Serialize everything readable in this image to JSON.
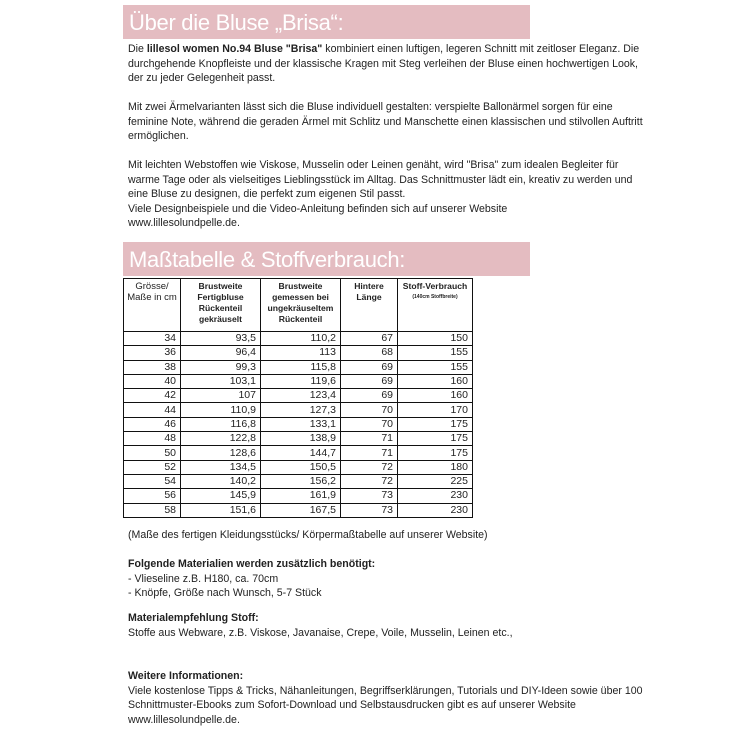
{
  "section1": {
    "title": "Über die Bluse „Brisa“:",
    "p1_pre": "Die ",
    "p1_bold": "lillesol women No.94 Bluse \"Brisa\"",
    "p1_post": " kombiniert einen luftigen, legeren Schnitt mit zeitloser Eleganz. Die durchgehende Knopfleiste und der klassische Kragen mit Steg verleihen der Bluse einen hochwertigen Look, der zu jeder Gelegenheit passt.",
    "p2": "Mit zwei Ärmelvarianten lässt sich die Bluse individuell gestalten: verspielte Ballonärmel sorgen für eine feminine Note, während die geraden Ärmel mit Schlitz und Manschette einen klassischen und stilvollen Auftritt ermöglichen.",
    "p3": "Mit leichten Webstoffen wie Viskose, Musselin oder Leinen genäht, wird \"Brisa\" zum idealen Begleiter für warme Tage oder als vielseitiges Lieblingsstück im Alltag. Das Schnittmuster lädt ein, kreativ zu werden und eine Bluse zu designen, die perfekt zum eigenen Stil passt.",
    "p4": "Viele Designbeispiele und die Video-Anleitung befinden sich auf unserer Website",
    "p5": "www.lillesolundpelle.de."
  },
  "section2": {
    "title": "Maßtabelle & Stoffverbrauch:",
    "headers": [
      "Grösse/ Maße in cm",
      "Brustweite Fertigbluse Rückenteil gekräuselt",
      "Brustweite gemessen bei ungekräuseltem Rückenteil",
      "Hintere Länge",
      "Stoff-Verbrauch"
    ],
    "header_note": "(140cm Stoffbreite)",
    "rows": [
      [
        "34",
        "93,5",
        "110,2",
        "67",
        "150"
      ],
      [
        "36",
        "96,4",
        "113",
        "68",
        "155"
      ],
      [
        "38",
        "99,3",
        "115,8",
        "69",
        "155"
      ],
      [
        "40",
        "103,1",
        "119,6",
        "69",
        "160"
      ],
      [
        "42",
        "107",
        "123,4",
        "69",
        "160"
      ],
      [
        "44",
        "110,9",
        "127,3",
        "70",
        "170"
      ],
      [
        "46",
        "116,8",
        "133,1",
        "70",
        "175"
      ],
      [
        "48",
        "122,8",
        "138,9",
        "71",
        "175"
      ],
      [
        "50",
        "128,6",
        "144,7",
        "71",
        "175"
      ],
      [
        "52",
        "134,5",
        "150,5",
        "72",
        "180"
      ],
      [
        "54",
        "140,2",
        "156,2",
        "72",
        "225"
      ],
      [
        "56",
        "145,9",
        "161,9",
        "73",
        "230"
      ],
      [
        "58",
        "151,6",
        "167,5",
        "73",
        "230"
      ]
    ],
    "note": "(Maße des fertigen Kleidungsstücks/ Körpermaßtabelle auf unserer Website)"
  },
  "materials": {
    "heading": "Folgende Materialien werden zusätzlich benötigt:",
    "items": [
      "- Vlieseline z.B. H180, ca. 70cm",
      "- Knöpfe, Größe nach Wunsch, 5-7 Stück"
    ]
  },
  "fabric": {
    "heading": "Materialempfehlung Stoff:",
    "text": "Stoffe aus Webware, z.B. Viskose, Javanaise, Crepe, Voile, Musselin, Leinen etc.,"
  },
  "info": {
    "heading": "Weitere Informationen:",
    "text": "Viele kostenlose Tipps & Tricks, Nähanleitungen, Begriffserklärungen, Tutorials und DIY-Ideen sowie über 100 Schnittmuster-Ebooks zum Sofort-Download und Selbstausdrucken gibt es auf unserer Website www.lillesolundpelle.de."
  },
  "colors": {
    "band": "#e4bcc1"
  }
}
